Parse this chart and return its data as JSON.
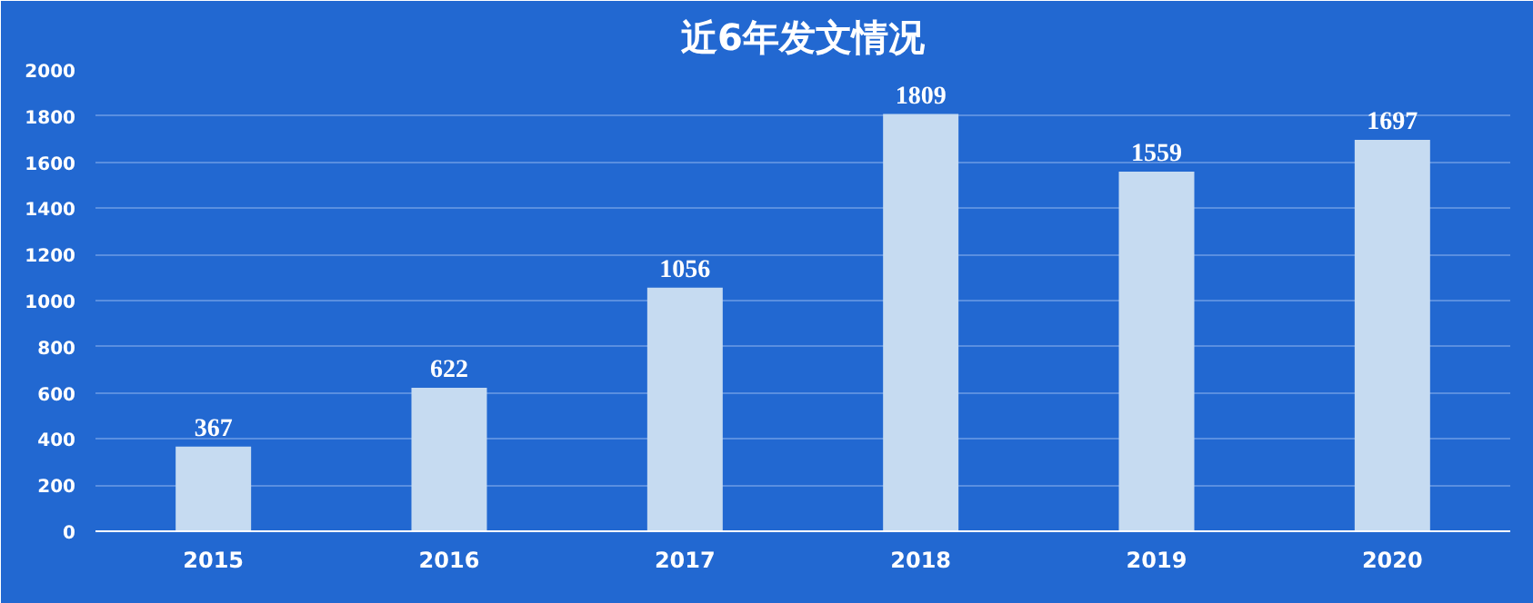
{
  "chart_data": {
    "type": "bar",
    "title": "近6年发文情况",
    "categories": [
      "2015",
      "2016",
      "2017",
      "2018",
      "2019",
      "2020"
    ],
    "values": [
      367,
      622,
      1056,
      1809,
      1559,
      1697
    ],
    "color": "#c6dbf1",
    "ylim": [
      0,
      2000
    ],
    "yticks": [
      0,
      200,
      400,
      600,
      800,
      1000,
      1200,
      1400,
      1600,
      1800,
      2000
    ],
    "grid": "y",
    "data_labels": true
  }
}
